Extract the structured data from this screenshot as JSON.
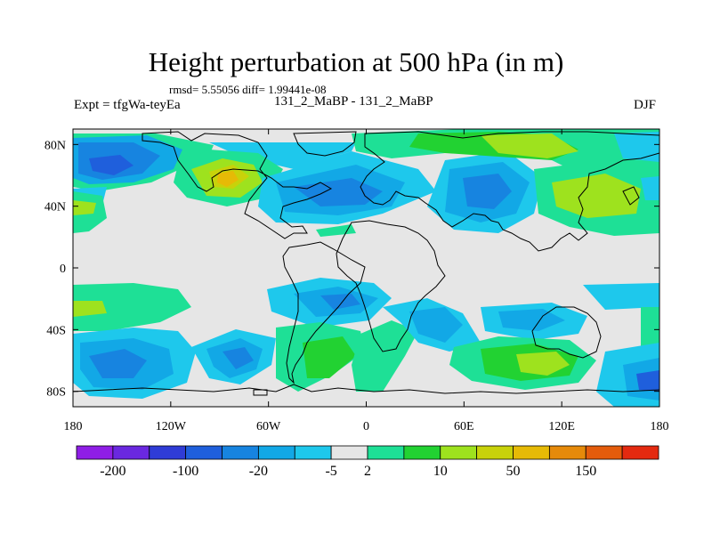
{
  "header": {
    "title": "Height perturbation at 500 hPa (in m)",
    "stats": "rmsd= 5.55056 diff= 1.99441e-08",
    "experiment": "Expt = tfgWa-teyEa",
    "difference_label": "131_2_MaBP - 131_2_MaBP",
    "season": "DJF"
  },
  "chart_data": {
    "type": "heatmap",
    "title": "Height perturbation at 500 hPa (in m)",
    "xlabel": "",
    "ylabel": "",
    "xlim": [
      -180,
      180
    ],
    "ylim": [
      -90,
      90
    ],
    "x_ticks": [
      {
        "value": -180,
        "label": "180"
      },
      {
        "value": -120,
        "label": "120W"
      },
      {
        "value": -60,
        "label": "60W"
      },
      {
        "value": 0,
        "label": "0"
      },
      {
        "value": 60,
        "label": "60E"
      },
      {
        "value": 120,
        "label": "120E"
      },
      {
        "value": 180,
        "label": "180"
      }
    ],
    "y_ticks": [
      {
        "value": 80,
        "label": "80N"
      },
      {
        "value": 40,
        "label": "40N"
      },
      {
        "value": 0,
        "label": "0"
      },
      {
        "value": -40,
        "label": "40S"
      },
      {
        "value": -80,
        "label": "80S"
      }
    ],
    "colorbar": {
      "colors": [
        "#8f1ee6",
        "#6a28e0",
        "#2f3cd6",
        "#1f5fdc",
        "#1784e0",
        "#12a8e6",
        "#1ec8ec",
        "#e6e6e6",
        "#1ee096",
        "#22d232",
        "#9ee21e",
        "#c8d20a",
        "#e6ba06",
        "#e68a0a",
        "#e45c0c",
        "#e42a10"
      ],
      "labels": [
        "-200",
        "-100",
        "-20",
        "-5",
        "2",
        "10",
        "50",
        "150"
      ],
      "label_after_box": [
        0,
        2,
        4,
        6,
        7,
        9,
        11,
        13
      ]
    },
    "field": [
      {
        "lon": -155,
        "lat": 62,
        "value": -20
      },
      {
        "lon": -130,
        "lat": 55,
        "value": -5
      },
      {
        "lon": -178,
        "lat": 38,
        "value": 8
      },
      {
        "lon": -85,
        "lat": 50,
        "value": 40
      },
      {
        "lon": -40,
        "lat": 38,
        "value": -10
      },
      {
        "lon": -35,
        "lat": 76,
        "value": -5
      },
      {
        "lon": 0,
        "lat": 40,
        "value": -10
      },
      {
        "lon": 40,
        "lat": 48,
        "value": -15
      },
      {
        "lon": 70,
        "lat": 75,
        "value": 10
      },
      {
        "lon": 105,
        "lat": 74,
        "value": 20
      },
      {
        "lon": 120,
        "lat": 40,
        "value": 15
      },
      {
        "lon": 85,
        "lat": 40,
        "value": -5
      },
      {
        "lon": 160,
        "lat": 70,
        "value": -5
      },
      {
        "lon": -175,
        "lat": -30,
        "value": 5
      },
      {
        "lon": -110,
        "lat": -48,
        "value": -5
      },
      {
        "lon": -145,
        "lat": -70,
        "value": -10
      },
      {
        "lon": -75,
        "lat": -70,
        "value": -8
      },
      {
        "lon": -40,
        "lat": -25,
        "value": -5
      },
      {
        "lon": -20,
        "lat": -70,
        "value": 10
      },
      {
        "lon": 10,
        "lat": -35,
        "value": -8
      },
      {
        "lon": 30,
        "lat": -60,
        "value": 10
      },
      {
        "lon": 75,
        "lat": -45,
        "value": -10
      },
      {
        "lon": 115,
        "lat": -60,
        "value": 20
      },
      {
        "lon": 165,
        "lat": -75,
        "value": -10
      },
      {
        "lon": 180,
        "lat": -40,
        "value": 5
      }
    ]
  }
}
